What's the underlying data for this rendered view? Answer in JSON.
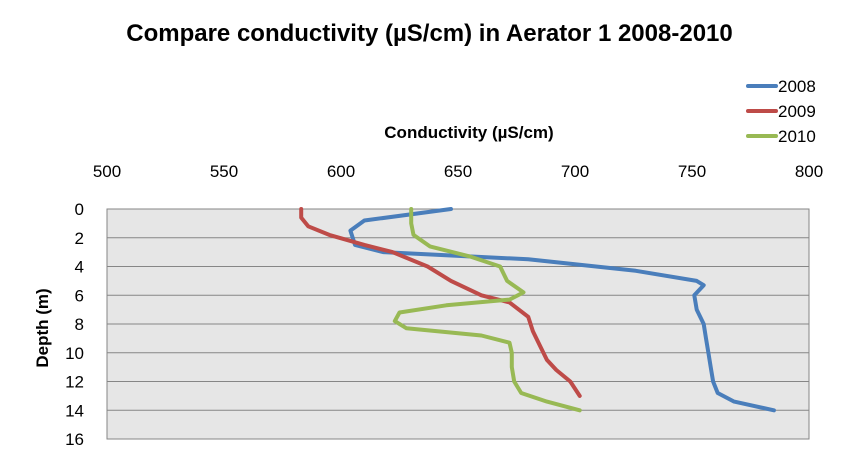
{
  "chart_data": {
    "type": "line",
    "title": "Compare conductivity (µS/cm) in Aerator 1 2008-2010",
    "xlabel": "Conductivity (µS/cm)",
    "ylabel": "Depth (m)",
    "xlim": [
      500,
      800
    ],
    "ylim": [
      0,
      16
    ],
    "y_inverted": true,
    "x_axis_position": "top",
    "xticks": [
      "500",
      "550",
      "600",
      "650",
      "700",
      "750",
      "800"
    ],
    "yticks": [
      "0",
      "2",
      "4",
      "6",
      "8",
      "10",
      "12",
      "14",
      "16"
    ],
    "grid": true,
    "legend_position": "top-right",
    "series": [
      {
        "name": "2008",
        "color": "#4a7ebb",
        "points": [
          [
            647,
            0
          ],
          [
            610,
            0.8
          ],
          [
            604,
            1.5
          ],
          [
            606,
            2.5
          ],
          [
            618,
            3.0
          ],
          [
            680,
            3.5
          ],
          [
            726,
            4.3
          ],
          [
            752,
            5.0
          ],
          [
            755,
            5.3
          ],
          [
            751,
            6.0
          ],
          [
            752,
            7.0
          ],
          [
            755,
            8.0
          ],
          [
            756,
            9.0
          ],
          [
            757,
            10.0
          ],
          [
            758,
            11.0
          ],
          [
            759,
            12.0
          ],
          [
            761,
            12.8
          ],
          [
            768,
            13.4
          ],
          [
            785,
            14.0
          ]
        ]
      },
      {
        "name": "2009",
        "color": "#be4b48",
        "points": [
          [
            583,
            0
          ],
          [
            583,
            0.6
          ],
          [
            586,
            1.2
          ],
          [
            595,
            1.8
          ],
          [
            610,
            2.5
          ],
          [
            622,
            3.0
          ],
          [
            637,
            4.0
          ],
          [
            647,
            5.0
          ],
          [
            660,
            6.0
          ],
          [
            672,
            6.5
          ],
          [
            680,
            7.5
          ],
          [
            682,
            8.5
          ],
          [
            685,
            9.5
          ],
          [
            688,
            10.5
          ],
          [
            692,
            11.2
          ],
          [
            698,
            12.0
          ],
          [
            702,
            13.0
          ]
        ]
      },
      {
        "name": "2010",
        "color": "#98b954",
        "points": [
          [
            630,
            0
          ],
          [
            630,
            1.0
          ],
          [
            631,
            1.8
          ],
          [
            638,
            2.6
          ],
          [
            655,
            3.3
          ],
          [
            668,
            4.0
          ],
          [
            671,
            5.0
          ],
          [
            678,
            5.8
          ],
          [
            672,
            6.3
          ],
          [
            645,
            6.7
          ],
          [
            625,
            7.2
          ],
          [
            623,
            7.8
          ],
          [
            628,
            8.3
          ],
          [
            660,
            8.8
          ],
          [
            672,
            9.3
          ],
          [
            673,
            10.0
          ],
          [
            673,
            11.0
          ],
          [
            674,
            12.0
          ],
          [
            677,
            12.8
          ],
          [
            688,
            13.4
          ],
          [
            702,
            14.0
          ]
        ]
      }
    ]
  }
}
